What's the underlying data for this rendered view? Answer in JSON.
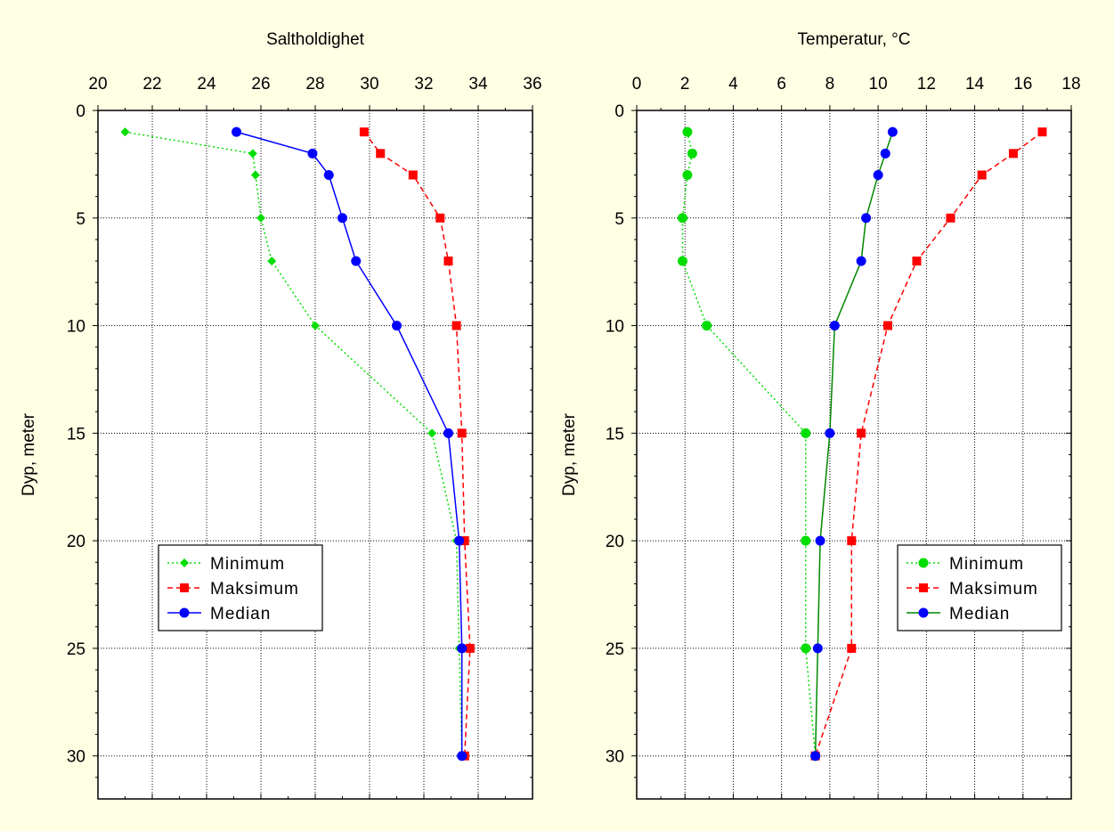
{
  "colors": {
    "background": "#ffffe4",
    "plot_background": "#ffffff",
    "minimum": "#00dd00",
    "maksimum": "#ff0000",
    "median_salinity": "#0000ff",
    "median_temperature_line": "#008800",
    "median_temperature_marker": "#0000ff"
  },
  "chart_data": [
    {
      "type": "line",
      "title": "Saltholdighet",
      "xlabel": "Saltholdighet",
      "ylabel": "Dyp, meter",
      "xlim": [
        20,
        36
      ],
      "ylim": [
        0,
        32
      ],
      "y_inverted": true,
      "x_axis_position": "top",
      "x_ticks": [
        "20",
        "22",
        "24",
        "26",
        "28",
        "30",
        "32",
        "34",
        "36"
      ],
      "y_ticks": [
        "0",
        "5",
        "10",
        "15",
        "20",
        "25",
        "30"
      ],
      "grid": true,
      "legend_placement": "lower-left",
      "series": [
        {
          "name": "Minimum",
          "style": "dotted",
          "marker": "diamond",
          "points": [
            [
              21.0,
              1
            ],
            [
              25.7,
              2
            ],
            [
              25.8,
              3
            ],
            [
              26.0,
              5
            ],
            [
              26.4,
              7
            ],
            [
              28.0,
              10
            ],
            [
              32.3,
              15
            ],
            [
              33.2,
              20
            ],
            [
              33.3,
              25
            ],
            [
              33.4,
              30
            ]
          ]
        },
        {
          "name": "Maksimum",
          "style": "dashed",
          "marker": "square",
          "points": [
            [
              29.8,
              1
            ],
            [
              30.4,
              2
            ],
            [
              31.6,
              3
            ],
            [
              32.6,
              5
            ],
            [
              32.9,
              7
            ],
            [
              33.2,
              10
            ],
            [
              33.4,
              15
            ],
            [
              33.5,
              20
            ],
            [
              33.7,
              25
            ],
            [
              33.5,
              30
            ]
          ]
        },
        {
          "name": "Median",
          "style": "solid",
          "marker": "circle",
          "points": [
            [
              25.1,
              1
            ],
            [
              27.9,
              2
            ],
            [
              28.5,
              3
            ],
            [
              29.0,
              5
            ],
            [
              29.5,
              7
            ],
            [
              31.0,
              10
            ],
            [
              32.9,
              15
            ],
            [
              33.3,
              20
            ],
            [
              33.4,
              25
            ],
            [
              33.4,
              30
            ]
          ]
        }
      ]
    },
    {
      "type": "line",
      "title": "Temperatur, °C",
      "xlabel": "Temperatur, °C",
      "ylabel": "Dyp, meter",
      "xlim": [
        0,
        18
      ],
      "ylim": [
        0,
        32
      ],
      "y_inverted": true,
      "x_axis_position": "top",
      "x_ticks": [
        "0",
        "2",
        "4",
        "6",
        "8",
        "10",
        "12",
        "14",
        "16",
        "18"
      ],
      "y_ticks": [
        "0",
        "5",
        "10",
        "15",
        "20",
        "25",
        "30"
      ],
      "grid": true,
      "legend_placement": "lower-right",
      "series": [
        {
          "name": "Minimum",
          "style": "dotted",
          "marker": "circle",
          "points": [
            [
              2.1,
              1
            ],
            [
              2.3,
              2
            ],
            [
              2.1,
              3
            ],
            [
              1.9,
              5
            ],
            [
              1.9,
              7
            ],
            [
              2.9,
              10
            ],
            [
              7.0,
              15
            ],
            [
              7.0,
              20
            ],
            [
              7.0,
              25
            ],
            [
              7.4,
              30
            ]
          ]
        },
        {
          "name": "Maksimum",
          "style": "dashed",
          "marker": "square",
          "points": [
            [
              16.8,
              1
            ],
            [
              15.6,
              2
            ],
            [
              14.3,
              3
            ],
            [
              13.0,
              5
            ],
            [
              11.6,
              7
            ],
            [
              10.4,
              10
            ],
            [
              9.3,
              15
            ],
            [
              8.9,
              20
            ],
            [
              8.9,
              25
            ],
            [
              7.4,
              30
            ]
          ]
        },
        {
          "name": "Median",
          "style": "solid",
          "marker": "circle",
          "points": [
            [
              10.6,
              1
            ],
            [
              10.3,
              2
            ],
            [
              10.0,
              3
            ],
            [
              9.5,
              5
            ],
            [
              9.3,
              7
            ],
            [
              8.2,
              10
            ],
            [
              8.0,
              15
            ],
            [
              7.6,
              20
            ],
            [
              7.5,
              25
            ],
            [
              7.4,
              30
            ]
          ]
        }
      ]
    }
  ]
}
